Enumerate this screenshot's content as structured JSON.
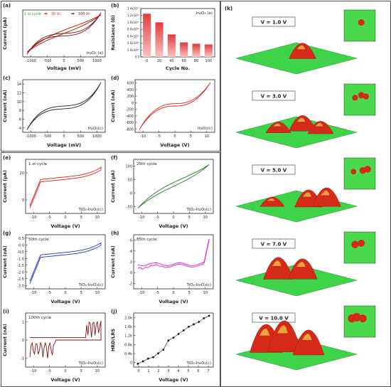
{
  "panels": {
    "a": {
      "letter": "(a)",
      "ylabel": "Current (pA)",
      "xlabel": "Voltage (mV)",
      "material": "In₂O₃ (a)",
      "xticks": [
        "-1000",
        "-500",
        "0",
        "500",
        "1000"
      ],
      "legend": [
        {
          "label": "1 st cycle",
          "color": "#2e9d2e"
        },
        {
          "label": "20 th",
          "color": "#e02020"
        },
        {
          "label": "100 th",
          "color": "#7a0f0f"
        }
      ]
    },
    "b": {
      "letter": "(b)",
      "ylabel": "Resistance (Ω)",
      "xlabel": "Cycle No.",
      "material": "In₂O₃ (a)"
    },
    "c": {
      "letter": "(c)",
      "ylabel": "Current (nA)",
      "xlabel": "Voltage (mV)",
      "material": "In₂O₃(c)",
      "xticks": [
        "-1000",
        "-500",
        "0",
        "500",
        "1000"
      ],
      "yticks": [
        "4",
        "6",
        "8",
        "10",
        "12",
        "14"
      ]
    },
    "d": {
      "letter": "(d)",
      "ylabel": "Current (nA)",
      "xlabel": "Voltage (V)",
      "material": "In₂O₃(c)",
      "xticks": [
        "-10",
        "-5",
        "0",
        "5",
        "10"
      ],
      "yticks": [
        "-800",
        "-600",
        "-400",
        "-200",
        "0",
        "200",
        "400",
        "600"
      ]
    },
    "e": {
      "letter": "(e)",
      "cycle": "1 st cycle",
      "ylabel": "Current (pA)",
      "xlabel": "Voltage (V)",
      "material": "TiO₂-In₂O₃(c)",
      "xticks": [
        "-10",
        "-5",
        "0",
        "5",
        "10"
      ],
      "yticks": [
        "0",
        "20"
      ]
    },
    "f": {
      "letter": "(f)",
      "cycle": "25th cycle",
      "ylabel": "Current (pA)",
      "xlabel": "Voltage (V)",
      "material": "TiO₂-In₂O₃(c)",
      "xticks": [
        "-10",
        "-5",
        "0",
        "5",
        "10"
      ],
      "yticks": [
        "-50",
        "0",
        "50",
        "100"
      ]
    },
    "g": {
      "letter": "(g)",
      "cycle": "50th cycle",
      "ylabel": "Current (nA)",
      "xlabel": "Voltage (V)",
      "material": "TiO₂-In₂O₃(c)",
      "xticks": [
        "-10",
        "-5",
        "0",
        "5",
        "10"
      ],
      "yticks": [
        "-3.0",
        "-2.5",
        "-2.0",
        "-1.5",
        "-1.0",
        "-0.5",
        "0.0",
        "0.5"
      ]
    },
    "h": {
      "letter": "(h)",
      "cycle": "85th cycle",
      "ylabel": "Current (nA)",
      "xlabel": "Voltage (V)",
      "material": "TiO₂-In₂O₃(c)",
      "xticks": [
        "-10",
        "-5",
        "0",
        "5",
        "10"
      ],
      "yticks": [
        "-2",
        "0",
        "2",
        "4",
        "6"
      ]
    },
    "i": {
      "letter": "(i)",
      "cycle": "100th cycle",
      "ylabel": "Current (nA)",
      "xlabel": "Voltage (V)",
      "material": "TiO₂-In₂O₃(c)",
      "xticks": [
        "-10",
        "-5",
        "0",
        "5",
        "10"
      ],
      "yticks": [
        "-1",
        "0",
        "1"
      ]
    },
    "j": {
      "letter": "(j)",
      "ylabel": "HRD/LRS",
      "xlabel": "Voltage (V)",
      "material": "TiO₂-In₂O₃(c)",
      "xticks": [
        "0",
        "1",
        "2",
        "3",
        "4",
        "5",
        "6",
        "7"
      ],
      "yticks": [
        "0",
        "0.4k",
        "0.8k",
        "1.2k",
        "1.6k",
        "2.0k"
      ]
    },
    "k": {
      "letter": "(k)",
      "rows": [
        {
          "label": "V = 1.0 V"
        },
        {
          "label": "V = 3.0 V"
        },
        {
          "label": "V = 5.0 V"
        },
        {
          "label": "V = 7.0 V"
        },
        {
          "label": "V = 10.0 V"
        }
      ]
    }
  },
  "chart_data": [
    {
      "type": "bar",
      "panel": "b",
      "categories": [
        "0",
        "20",
        "40",
        "60",
        "80",
        "100"
      ],
      "values": [
        125000000000.0,
        100000000000.0,
        65000000000.0,
        42000000000.0,
        38000000000.0,
        36000000000.0
      ],
      "ylabel": "Resistance (Ω)",
      "xlabel": "Cycle No.",
      "yticks": [
        "0.0",
        "2.0x10¹⁰",
        "4.0x10¹⁰",
        "6.0x10¹⁰",
        "8.0x10¹⁰",
        "1.0x10¹¹",
        "1.2x10¹¹",
        "1.4x10¹¹"
      ],
      "ylim": [
        0,
        140000000000.0
      ]
    },
    {
      "type": "scatter",
      "panel": "j",
      "x": [
        0,
        0.5,
        1,
        1.5,
        2,
        2.5,
        3,
        3.5,
        4,
        4.5,
        5,
        5.5,
        6,
        6.5,
        7
      ],
      "values": [
        0.02,
        0.12,
        0.23,
        0.29,
        0.45,
        0.6,
        0.98,
        1.1,
        1.25,
        1.4,
        1.55,
        1.65,
        1.75,
        1.9,
        2.0
      ],
      "ylabel": "HRD/LRS",
      "xlabel": "Voltage (V)",
      "xlim": [
        0,
        7
      ],
      "ylim": [
        0,
        2.0
      ]
    }
  ]
}
